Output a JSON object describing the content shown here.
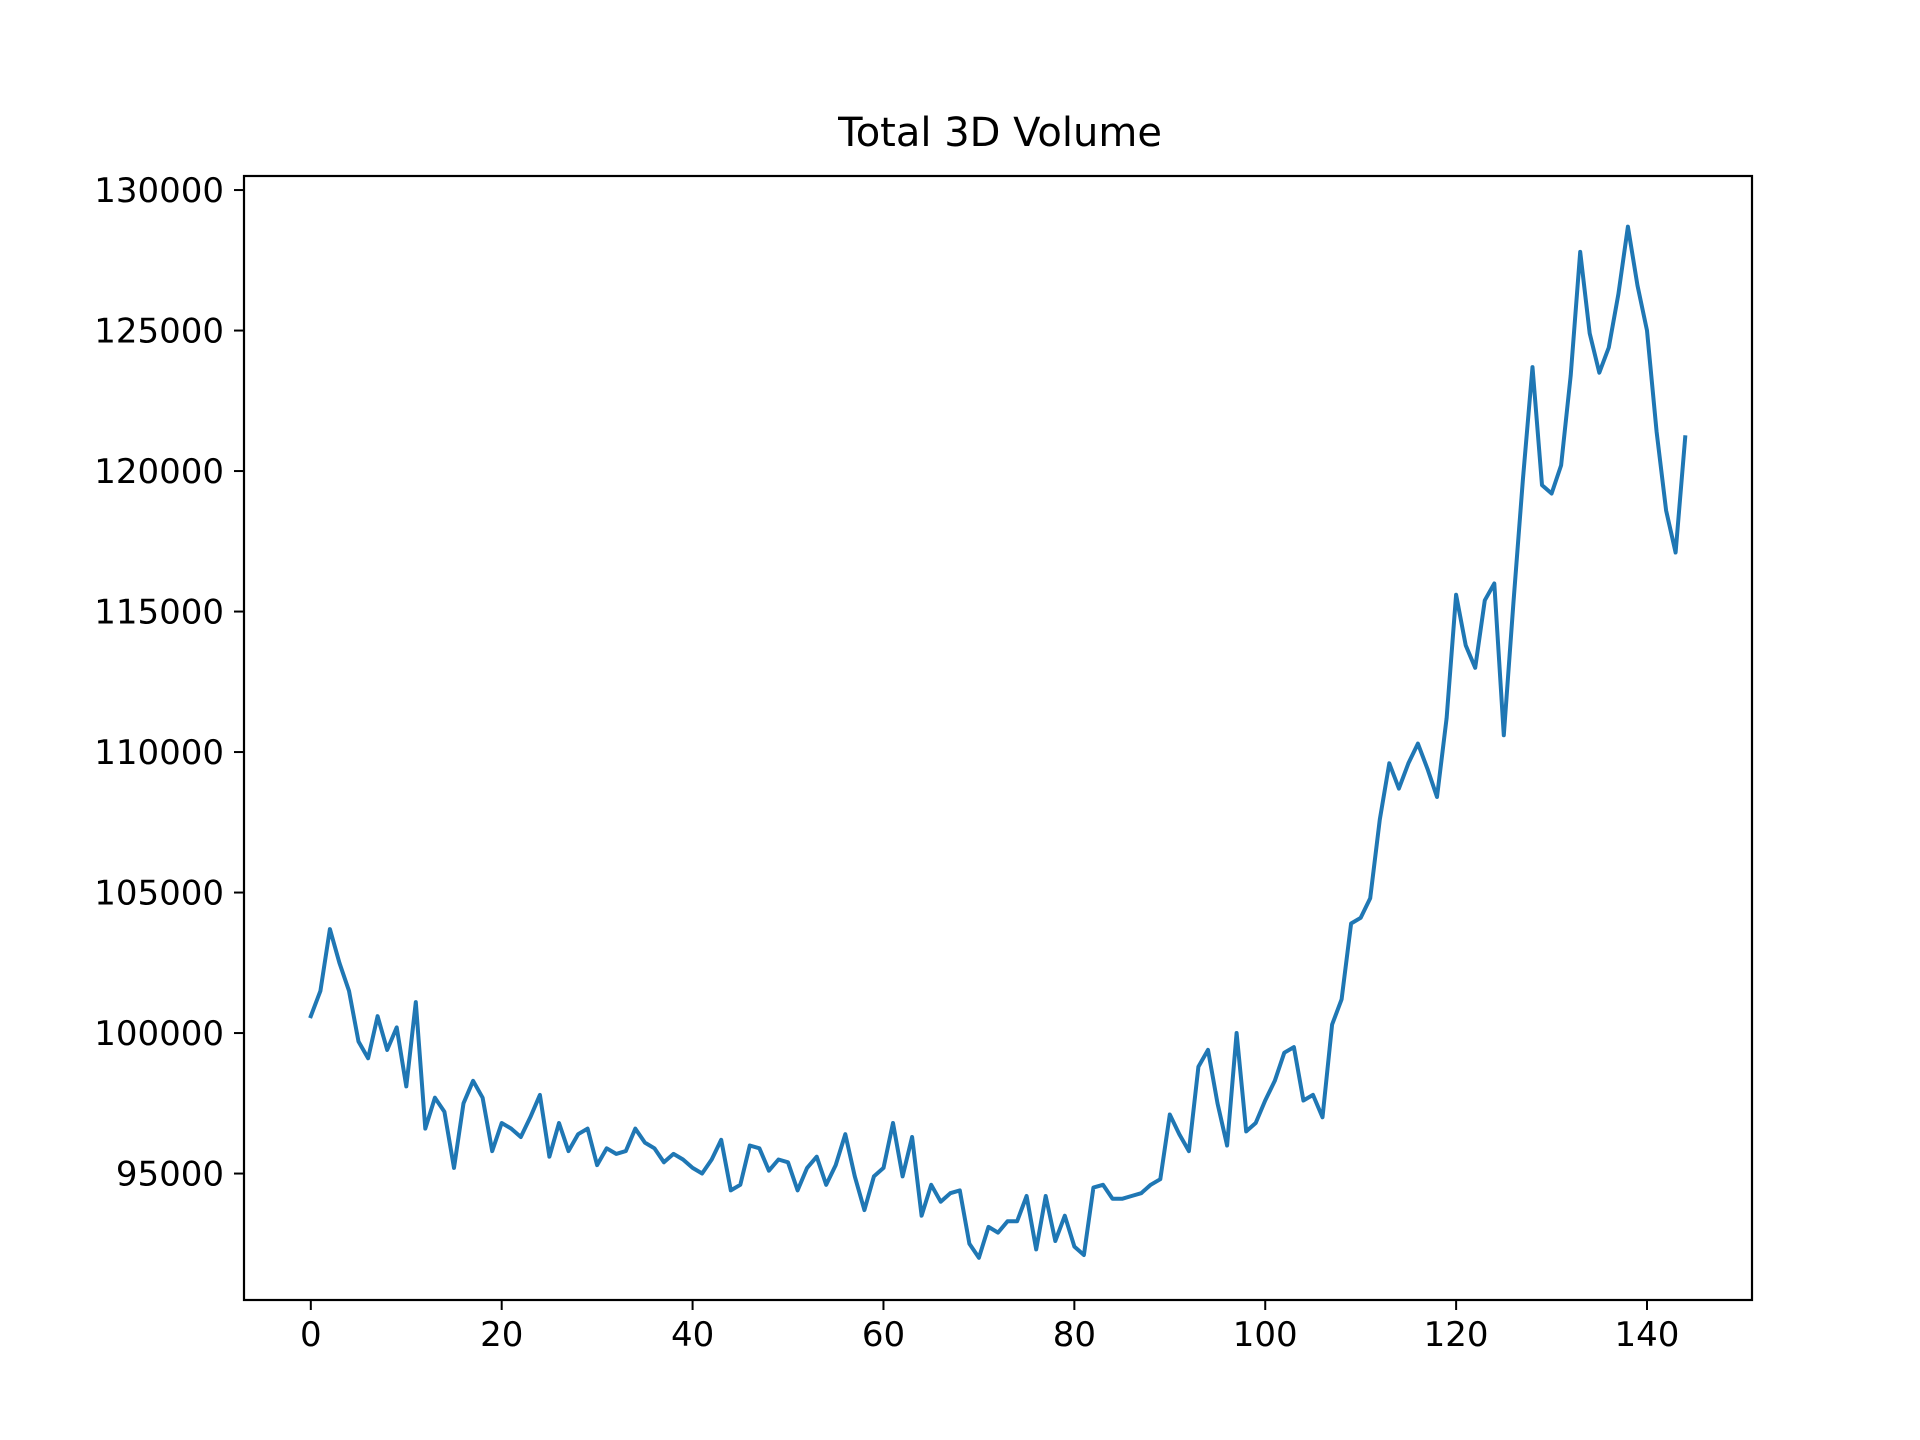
{
  "chart_data": {
    "type": "line",
    "title": "Total 3D Volume",
    "xlabel": "",
    "ylabel": "",
    "xlim": [
      -7,
      151
    ],
    "ylim": [
      90500,
      130500
    ],
    "grid": false,
    "legend": "none",
    "x_ticks": [
      0,
      20,
      40,
      60,
      80,
      100,
      120,
      140
    ],
    "x_tick_labels": [
      "0",
      "20",
      "40",
      "60",
      "80",
      "100",
      "120",
      "140"
    ],
    "y_ticks": [
      95000,
      100000,
      105000,
      110000,
      115000,
      120000,
      125000,
      130000
    ],
    "y_tick_labels": [
      "95000",
      "100000",
      "105000",
      "110000",
      "115000",
      "120000",
      "125000",
      "130000"
    ],
    "colors": {
      "line": "#1f77b4",
      "axes": "#000000"
    },
    "series": [
      {
        "values": [
          100600,
          101500,
          103700,
          102500,
          101500,
          99700,
          99100,
          100600,
          99400,
          100200,
          98100,
          101100,
          96600,
          97700,
          97200,
          95200,
          97500,
          98300,
          97700,
          95800,
          96800,
          96600,
          96300,
          97000,
          97800,
          95600,
          96800,
          95800,
          96400,
          96600,
          95300,
          95900,
          95700,
          95800,
          96600,
          96100,
          95900,
          95400,
          95700,
          95500,
          95200,
          95000,
          95500,
          96200,
          94400,
          94600,
          96000,
          95900,
          95100,
          95500,
          95400,
          94400,
          95200,
          95600,
          94600,
          95300,
          96400,
          94900,
          93700,
          94900,
          95200,
          96800,
          94900,
          96300,
          93500,
          94600,
          94000,
          94300,
          94400,
          92500,
          92000,
          93100,
          92900,
          93300,
          93300,
          94200,
          92300,
          94200,
          92600,
          93500,
          92400,
          92100,
          94500,
          94600,
          94100,
          94100,
          94200,
          94300,
          94600,
          94800,
          97100,
          96400,
          95800,
          98800,
          99400,
          97500,
          96000,
          100000,
          96500,
          96800,
          97600,
          98300,
          99300,
          99500,
          97600,
          97800,
          97000,
          100300,
          101200,
          103900,
          104100,
          104800,
          107600,
          109600,
          108700,
          109600,
          110300,
          109400,
          108400,
          111200,
          115600,
          113800,
          113000,
          115400,
          116000,
          110600,
          115300,
          119700,
          123700,
          119500,
          119200,
          120200,
          123400,
          127800,
          124900,
          123500,
          124400,
          126300,
          128700,
          126600,
          125000,
          121400,
          118600,
          117100,
          121200
        ]
      }
    ]
  }
}
